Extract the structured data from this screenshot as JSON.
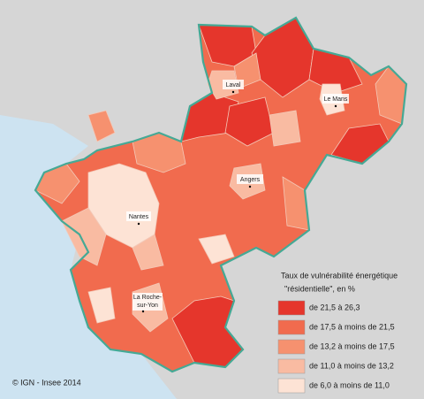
{
  "legend": {
    "title": [
      "Taux de vulnérabilité énergétique",
      "\"résidentielle\", en %"
    ],
    "items": [
      {
        "label": "de 21,5 à 26,3",
        "color": "#e5362c"
      },
      {
        "label": "de 17,5 à moins de 21,5",
        "color": "#f16b4e"
      },
      {
        "label": "de 13,2 à moins de 17,5",
        "color": "#f6916f"
      },
      {
        "label": "de 11,0 à moins de 13,2",
        "color": "#f9bba2"
      },
      {
        "label": "de 6,0 à moins de 11,0",
        "color": "#fde3d5"
      }
    ]
  },
  "cities": [
    {
      "label": "Laval"
    },
    {
      "label": "Le Mans"
    },
    {
      "label": "Angers"
    },
    {
      "label": "Nantes"
    },
    {
      "label": "La Roche-"
    },
    {
      "label": "sur-Yon"
    }
  ],
  "credit": "© IGN - Insee 2014"
}
